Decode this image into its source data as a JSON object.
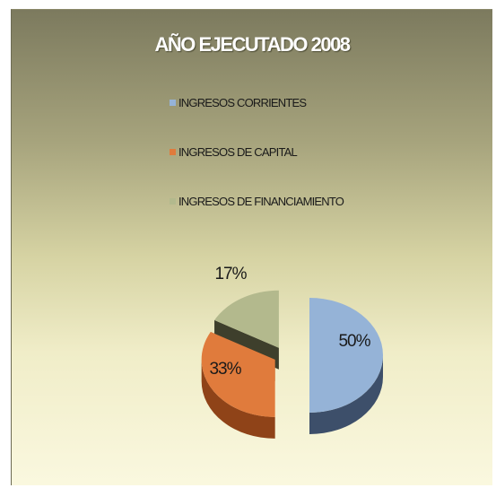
{
  "chart_data": {
    "type": "pie",
    "title": "AÑO EJECUTADO 2008",
    "categories": [
      "INGRESOS CORRIENTES",
      "INGRESOS DE CAPITAL",
      "INGRESOS DE FINANCIAMIENTO"
    ],
    "values": [
      50,
      33,
      17
    ],
    "data_labels": [
      "50%",
      "33%",
      "17%"
    ],
    "colors": [
      "#95b3d7",
      "#e07b3c",
      "#b3b98d"
    ],
    "side_colors": [
      "#3d4f6a",
      "#8f4318",
      "#3e3f2c"
    ],
    "legend_position": "top",
    "pie_style": "3d-exploded"
  }
}
